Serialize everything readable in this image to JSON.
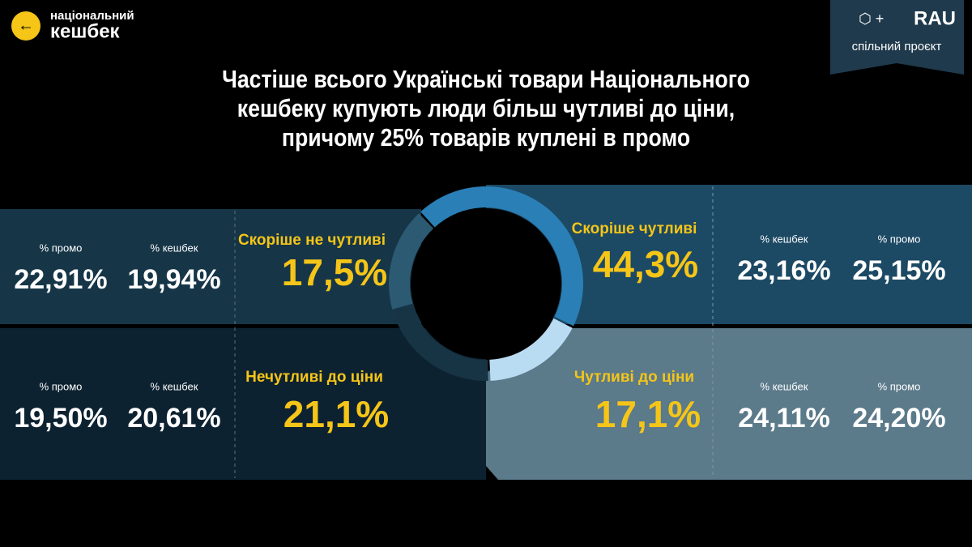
{
  "header": {
    "logo_line1": "національний",
    "logo_line2": "кешбек",
    "partner": "RAU",
    "partner_caption": "спільний проєкт"
  },
  "chart_data": {
    "type": "donut",
    "title": "Частіше всього Українські товари Національного кешбеку купують люди більш чутливі до ціни, причому 25% товарів куплені в промо",
    "categories": [
      "Скоріше чутливі",
      "Чутливі до ціни",
      "Нечутливі до ціни",
      "Скоріше не чутливі"
    ],
    "values": [
      44.3,
      17.1,
      21.1,
      17.5
    ],
    "value_labels": [
      "44,3%",
      "17,1%",
      "21,1%",
      "17,5%"
    ],
    "colors": [
      "#2a7fb6",
      "#b9dcf2",
      "#173444",
      "#2c5a72"
    ]
  },
  "panels": [
    [
      {
        "label": "% кешбек",
        "value": "23,16%"
      },
      {
        "label": "% промо",
        "value": "25,15%"
      }
    ],
    [
      {
        "label": "% кешбек",
        "value": "24,11%"
      },
      {
        "label": "% промо",
        "value": "24,20%"
      }
    ],
    [
      {
        "label": "% промо",
        "value": "19,50%"
      },
      {
        "label": "% кешбек",
        "value": "20,61%"
      }
    ],
    [
      {
        "label": "% промо",
        "value": "22,91%"
      },
      {
        "label": "% кешбек",
        "value": "19,94%"
      }
    ]
  ]
}
